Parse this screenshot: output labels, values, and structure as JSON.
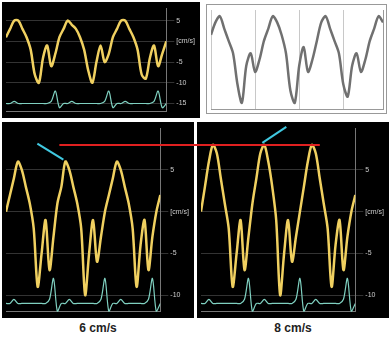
{
  "chart_data": [
    {
      "type": "line",
      "x": [
        0,
        1,
        2,
        3,
        4,
        5,
        6,
        7,
        8,
        9,
        10,
        11,
        12,
        13,
        14,
        15,
        16,
        17,
        18,
        19,
        20,
        21,
        22,
        23,
        24,
        25,
        26,
        27,
        28,
        29,
        30,
        31,
        32,
        33,
        34,
        35,
        36,
        37,
        38,
        39
      ],
      "xlim": [
        0,
        39
      ],
      "ylim": [
        -17,
        8
      ],
      "yticks": [
        -15,
        -10,
        -5,
        {
          "value": 0,
          "label": "[cm/s]"
        },
        5
      ],
      "grid": true,
      "tick_labels": "y",
      "series": [
        {
          "color": "#f0d060",
          "values": [
            1,
            3,
            5,
            5,
            3,
            1,
            -2,
            -8,
            -10,
            -4,
            -1,
            -6,
            -3,
            1,
            3,
            5,
            4,
            3,
            1,
            -2,
            -7,
            -10,
            -5,
            -1,
            -5,
            -3,
            1,
            3,
            5,
            5,
            3,
            1,
            -2,
            -8,
            -9,
            -4,
            -1,
            -6,
            -3,
            0
          ]
        },
        {
          "color": "#ffffff",
          "values": [
            1,
            3,
            5,
            5,
            3,
            1,
            -2,
            -8,
            -10,
            -4,
            -1,
            -6,
            -3,
            1,
            null,
            null,
            null,
            null,
            null,
            null,
            null,
            null,
            null,
            null,
            null,
            null,
            null,
            null,
            null,
            null,
            null,
            null,
            null,
            null,
            null,
            null,
            null,
            null,
            null,
            null
          ]
        },
        {
          "color": "#7fd0c0",
          "values": [
            -15,
            -15,
            -14.5,
            -15,
            -15,
            -15,
            -15,
            -15,
            -15,
            -15,
            -15,
            -14.5,
            -12,
            -16,
            -15,
            -15,
            -14.5,
            -15,
            -15,
            -15,
            -15,
            -15,
            -15,
            -15,
            -14.5,
            -12,
            -16,
            -15,
            -15,
            -14.5,
            -15,
            -15,
            -15,
            -15,
            -15,
            -15,
            -14.5,
            -12,
            -16,
            -15
          ]
        }
      ]
    },
    {
      "type": "line",
      "x": [
        0,
        1,
        2,
        3,
        4,
        5,
        6,
        7,
        8,
        9,
        10,
        11,
        12,
        13,
        14,
        15,
        16,
        17,
        18,
        19,
        20,
        21,
        22,
        23,
        24,
        25,
        26,
        27,
        28,
        29,
        30,
        31,
        32,
        33,
        34,
        35,
        36,
        37,
        38,
        39
      ],
      "xlim": [
        0,
        39
      ],
      "ylim": [
        -10,
        6
      ],
      "xticks": [
        0,
        10,
        20,
        30
      ],
      "grid": true,
      "tick_labels": false,
      "series": [
        {
          "color": "#707070",
          "values": [
            2,
            4,
            5,
            3,
            1,
            -1,
            -6,
            -9,
            -3,
            -1,
            -4,
            -2,
            1,
            3,
            5,
            4,
            2,
            -1,
            -7,
            -9,
            -3,
            0,
            -4,
            -2,
            1,
            4,
            5,
            3,
            1,
            -1,
            -6,
            -8,
            -3,
            -1,
            -4,
            -2,
            1,
            3,
            5,
            4
          ]
        }
      ]
    },
    {
      "type": "line",
      "title": "6 cm/s",
      "x": [
        0,
        1,
        2,
        3,
        4,
        5,
        6,
        7,
        8,
        9,
        10,
        11,
        12,
        13,
        14,
        15,
        16,
        17,
        18,
        19,
        20,
        21,
        22,
        23,
        24,
        25,
        26,
        27,
        28,
        29,
        30,
        31,
        32,
        33,
        34,
        35,
        36,
        37,
        38,
        39
      ],
      "xlim": [
        0,
        39
      ],
      "ylim": [
        -12,
        10
      ],
      "yticks": [
        -10,
        -5,
        {
          "value": 0,
          "label": "[cm/s]"
        },
        5
      ],
      "grid": true,
      "tick_labels": "y",
      "series": [
        {
          "color": "#f0d060",
          "values": [
            0,
            2,
            4,
            6,
            5,
            3,
            1,
            -2,
            -9,
            -5,
            -1,
            -7,
            -3,
            1,
            3,
            6,
            5,
            3,
            1,
            -2,
            -10,
            -5,
            -1,
            -6,
            -3,
            0,
            2,
            4,
            6,
            5,
            3,
            1,
            -2,
            -9,
            -4,
            -1,
            -7,
            -3,
            0,
            2
          ]
        },
        {
          "color": "#7fd0c0",
          "values": [
            -11,
            -11,
            -10.5,
            -11,
            -11,
            -11,
            -11,
            -11,
            -11,
            -11,
            -11,
            -10.5,
            -8,
            -12,
            -11,
            -11,
            -10.5,
            -11,
            -11,
            -11,
            -11,
            -11,
            -11,
            -11,
            -10.5,
            -8,
            -12,
            -11,
            -11,
            -10.5,
            -11,
            -11,
            -11,
            -11,
            -11,
            -11,
            -10.5,
            -8,
            -12,
            -11
          ]
        }
      ]
    },
    {
      "type": "line",
      "title": "8 cm/s",
      "x": [
        0,
        1,
        2,
        3,
        4,
        5,
        6,
        7,
        8,
        9,
        10,
        11,
        12,
        13,
        14,
        15,
        16,
        17,
        18,
        19,
        20,
        21,
        22,
        23,
        24,
        25,
        26,
        27,
        28,
        29,
        30,
        31,
        32,
        33,
        34,
        35,
        36,
        37,
        38,
        39
      ],
      "xlim": [
        0,
        39
      ],
      "ylim": [
        -12,
        10
      ],
      "yticks": [
        -10,
        -5,
        {
          "value": 0,
          "label": "[cm/s]"
        },
        5
      ],
      "grid": true,
      "tick_labels": "y",
      "series": [
        {
          "color": "#f0d060",
          "values": [
            0,
            3,
            6,
            8,
            7,
            4,
            1,
            -2,
            -9,
            -5,
            -1,
            -7,
            -3,
            1,
            4,
            7,
            8,
            6,
            3,
            -1,
            -10,
            -5,
            -1,
            -6,
            -3,
            0,
            3,
            6,
            8,
            7,
            4,
            1,
            -2,
            -9,
            -4,
            -1,
            -7,
            -3,
            0,
            2
          ]
        },
        {
          "color": "#7fd0c0",
          "values": [
            -11,
            -11,
            -10.5,
            -11,
            -11,
            -11,
            -11,
            -11,
            -11,
            -11,
            -11,
            -10.5,
            -8,
            -12,
            -11,
            -11,
            -10.5,
            -11,
            -11,
            -11,
            -11,
            -11,
            -11,
            -11,
            -10.5,
            -8,
            -12,
            -11,
            -11,
            -10.5,
            -11,
            -11,
            -11,
            -11,
            -11,
            -11,
            -10.5,
            -8,
            -12,
            -11
          ]
        }
      ]
    }
  ]
}
